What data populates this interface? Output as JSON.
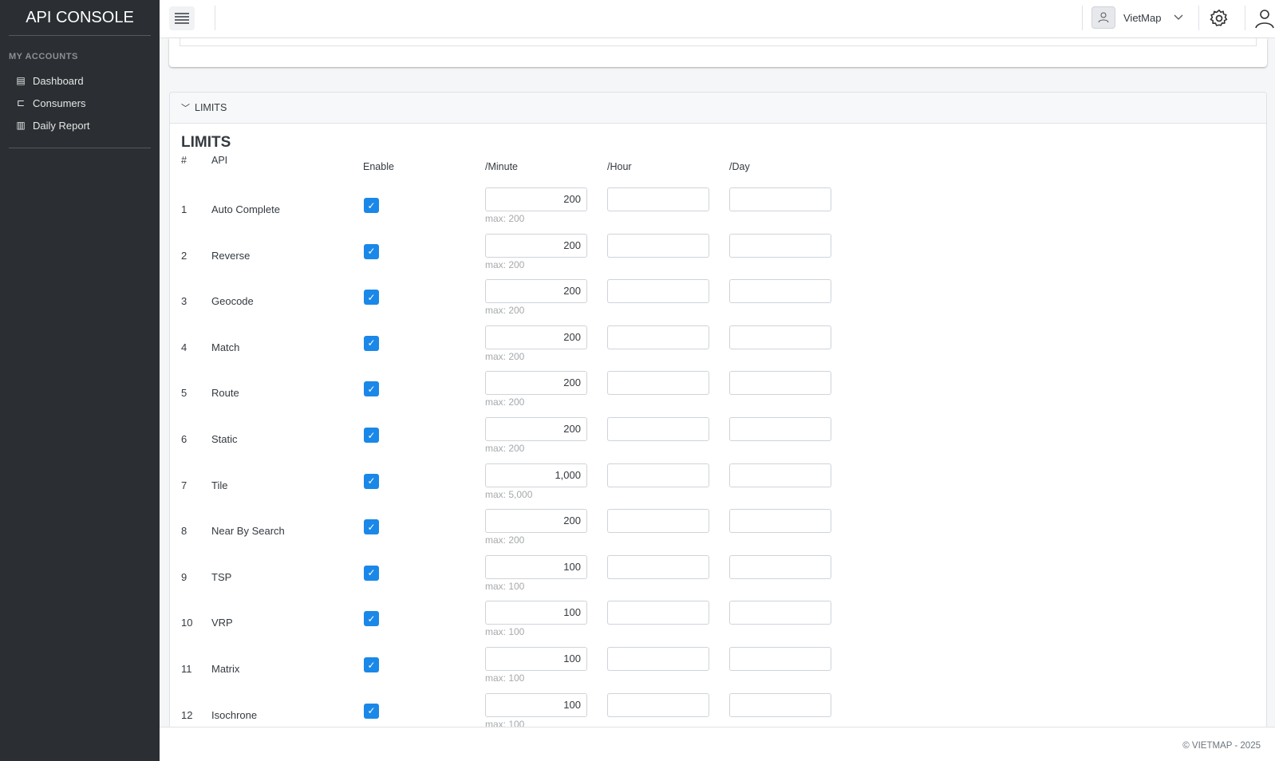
{
  "sidebar": {
    "brand": "API CONSOLE",
    "section": "MY ACCOUNTS",
    "items": [
      {
        "label": "Dashboard",
        "icon": "id-card-icon"
      },
      {
        "label": "Consumers",
        "icon": "ticket-icon"
      },
      {
        "label": "Daily Report",
        "icon": "bar-chart-icon"
      }
    ]
  },
  "topbar": {
    "account": "VietMap"
  },
  "limits": {
    "panel_title": "LIMITS",
    "heading": "LIMITS",
    "columns": {
      "num": "#",
      "api": "API",
      "enable": "Enable",
      "minute": "/Minute",
      "hour": "/Hour",
      "day": "/Day"
    },
    "rows": [
      {
        "n": "1",
        "api": "Auto Complete",
        "enabled": true,
        "minute": "200",
        "max": "max: 200",
        "hour": "",
        "day": ""
      },
      {
        "n": "2",
        "api": "Reverse",
        "enabled": true,
        "minute": "200",
        "max": "max: 200",
        "hour": "",
        "day": ""
      },
      {
        "n": "3",
        "api": "Geocode",
        "enabled": true,
        "minute": "200",
        "max": "max: 200",
        "hour": "",
        "day": ""
      },
      {
        "n": "4",
        "api": "Match",
        "enabled": true,
        "minute": "200",
        "max": "max: 200",
        "hour": "",
        "day": ""
      },
      {
        "n": "5",
        "api": "Route",
        "enabled": true,
        "minute": "200",
        "max": "max: 200",
        "hour": "",
        "day": ""
      },
      {
        "n": "6",
        "api": "Static",
        "enabled": true,
        "minute": "200",
        "max": "max: 200",
        "hour": "",
        "day": ""
      },
      {
        "n": "7",
        "api": "Tile",
        "enabled": true,
        "minute": "1,000",
        "max": "max: 5,000",
        "hour": "",
        "day": ""
      },
      {
        "n": "8",
        "api": "Near By Search",
        "enabled": true,
        "minute": "200",
        "max": "max: 200",
        "hour": "",
        "day": ""
      },
      {
        "n": "9",
        "api": "TSP",
        "enabled": true,
        "minute": "100",
        "max": "max: 100",
        "hour": "",
        "day": ""
      },
      {
        "n": "10",
        "api": "VRP",
        "enabled": true,
        "minute": "100",
        "max": "max: 100",
        "hour": "",
        "day": ""
      },
      {
        "n": "11",
        "api": "Matrix",
        "enabled": true,
        "minute": "100",
        "max": "max: 100",
        "hour": "",
        "day": ""
      },
      {
        "n": "12",
        "api": "Isochrone",
        "enabled": true,
        "minute": "100",
        "max": "max: 100",
        "hour": "",
        "day": ""
      }
    ]
  },
  "footer": {
    "text": "© VIETMAP - 2025"
  },
  "colors": {
    "sidebar": "#2b2f33",
    "accent": "#1a88e8"
  }
}
